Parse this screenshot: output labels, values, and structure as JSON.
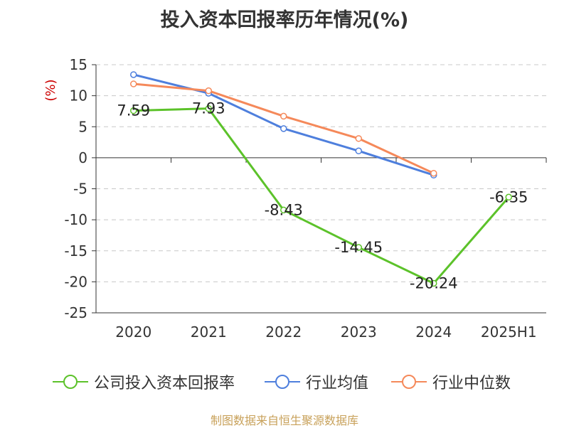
{
  "title": "投入资本回报率历年情况(%)",
  "source": "制图数据来自恒生聚源数据库",
  "colors": {
    "company": "#5cc22a",
    "industry_avg": "#4e7fdd",
    "industry_median": "#f5895a",
    "grid": "#c8c8c8",
    "axis": "#333333",
    "unit": "#cc0000"
  },
  "chart_data": {
    "type": "line",
    "title": "投入资本回报率历年情况(%)",
    "ylabel": "(%)",
    "xlabel": "",
    "ylim": [
      -25,
      15
    ],
    "yticks": [
      15,
      10,
      5,
      0,
      -5,
      -10,
      -15,
      -20,
      -25
    ],
    "categories": [
      "2020",
      "2021",
      "2022",
      "2023",
      "2024",
      "2025H1"
    ],
    "grid": true,
    "legend_position": "bottom",
    "series": [
      {
        "name": "公司投入资本回报率",
        "color": "#5cc22a",
        "values": [
          7.59,
          7.93,
          -8.43,
          -14.45,
          -20.24,
          -6.35
        ],
        "labels": [
          "7.59",
          "7.93",
          "-8.43",
          "-14.45",
          "-20.24",
          "-6.35"
        ]
      },
      {
        "name": "行业均值",
        "color": "#4e7fdd",
        "values": [
          13.4,
          10.4,
          4.7,
          1.1,
          -2.8,
          null
        ]
      },
      {
        "name": "行业中位数",
        "color": "#f5895a",
        "values": [
          11.9,
          10.8,
          6.7,
          3.1,
          -2.5,
          null
        ]
      }
    ]
  }
}
